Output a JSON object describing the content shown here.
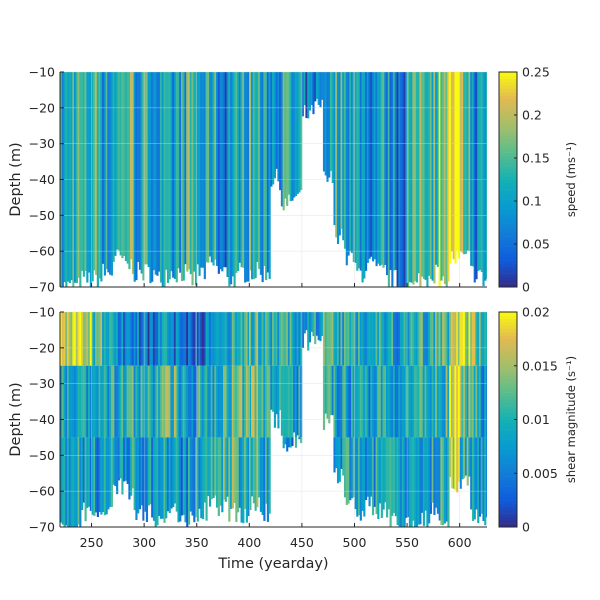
{
  "chart_data": [
    {
      "type": "heatmap",
      "name": "speed",
      "xlabel": "",
      "ylabel": "Depth (m)",
      "colorbar_label": "speed (ms⁻¹)",
      "xlim": [
        220,
        626
      ],
      "ylim": [
        -70,
        -10
      ],
      "clim": [
        0,
        0.25
      ],
      "grid": true,
      "colormap": "parula",
      "yticks": [
        "-10",
        "-20",
        "-30",
        "-40",
        "-50",
        "-60",
        "-70"
      ],
      "ytick_values": [
        -10,
        -20,
        -30,
        -40,
        -50,
        -60,
        -70
      ],
      "cbticks": [
        "0",
        "0.05",
        "0.1",
        "0.15",
        "0.2",
        "0.25"
      ],
      "cbtick_values": [
        0,
        0.05,
        0.1,
        0.15,
        0.2,
        0.25
      ],
      "time_bin_start": [
        220,
        230,
        240,
        250,
        260,
        270,
        280,
        290,
        300,
        310,
        320,
        330,
        340,
        350,
        360,
        370,
        380,
        390,
        400,
        410,
        420,
        430,
        440,
        450,
        460,
        470,
        480,
        490,
        500,
        510,
        520,
        530,
        540,
        550,
        560,
        570,
        580,
        590,
        600,
        610,
        620
      ],
      "bin_width_days": 10,
      "layers": [
        [
          -10,
          -70
        ]
      ],
      "values": [
        [
          0.1
        ],
        [
          0.14
        ],
        [
          0.12
        ],
        [
          0.15
        ],
        [
          0.1
        ],
        [
          0.13
        ],
        [
          0.16
        ],
        [
          0.1
        ],
        [
          0.12
        ],
        [
          0.09
        ],
        [
          0.08
        ],
        [
          0.11
        ],
        [
          0.14
        ],
        [
          0.09
        ],
        [
          0.12
        ],
        [
          0.07
        ],
        [
          0.1
        ],
        [
          0.12
        ],
        [
          0.13
        ],
        [
          0.09
        ],
        [
          0.1
        ],
        [
          0.12
        ],
        [
          0.08
        ],
        [
          0.06
        ],
        [
          0.07
        ],
        [
          0.1
        ],
        [
          0.13
        ],
        [
          0.12
        ],
        [
          0.1
        ],
        [
          0.08
        ],
        [
          0.11
        ],
        [
          0.09
        ],
        [
          0.07
        ],
        [
          0.12
        ],
        [
          0.17
        ],
        [
          0.15
        ],
        [
          0.2
        ],
        [
          0.24
        ],
        [
          0.16
        ],
        [
          0.08
        ],
        [
          0.1
        ]
      ],
      "deepest_valid_depth": [
        -70,
        -70,
        -68,
        -68,
        -66,
        -62,
        -64,
        -66,
        -66,
        -68,
        -66,
        -66,
        -68,
        -66,
        -64,
        -66,
        -68,
        -66,
        -66,
        -66,
        -40,
        -47,
        -45,
        -22,
        -20,
        -40,
        -55,
        -62,
        -66,
        -64,
        -66,
        -68,
        -70,
        -70,
        -68,
        -66,
        -70,
        -62,
        -62,
        -66,
        -68
      ]
    },
    {
      "type": "heatmap",
      "name": "shear",
      "xlabel": "Time (yearday)",
      "ylabel": "Depth (m)",
      "colorbar_label": "shear magnitude (s⁻¹)",
      "xlim": [
        220,
        626
      ],
      "ylim": [
        -70,
        -10
      ],
      "clim": [
        0,
        0.02
      ],
      "grid": true,
      "colormap": "parula",
      "xticks": [
        "250",
        "300",
        "350",
        "400",
        "450",
        "500",
        "550",
        "600"
      ],
      "xtick_values": [
        250,
        300,
        350,
        400,
        450,
        500,
        550,
        600
      ],
      "yticks": [
        "-10",
        "-20",
        "-30",
        "-40",
        "-50",
        "-60",
        "-70"
      ],
      "ytick_values": [
        -10,
        -20,
        -30,
        -40,
        -50,
        -60,
        -70
      ],
      "cbticks": [
        "0",
        "0.005",
        "0.01",
        "0.015",
        "0.02"
      ],
      "cbtick_values": [
        0,
        0.005,
        0.01,
        0.015,
        0.02
      ],
      "time_bin_start": [
        220,
        230,
        240,
        250,
        260,
        270,
        280,
        290,
        300,
        310,
        320,
        330,
        340,
        350,
        360,
        370,
        380,
        390,
        400,
        410,
        420,
        430,
        440,
        450,
        460,
        470,
        480,
        490,
        500,
        510,
        520,
        530,
        540,
        550,
        560,
        570,
        580,
        590,
        600,
        610,
        620
      ],
      "bin_width_days": 10,
      "layers": [
        [
          -10,
          -25
        ],
        [
          -25,
          -45
        ],
        [
          -45,
          -70
        ]
      ],
      "values": [
        [
          0.017,
          0.008,
          0.009
        ],
        [
          0.018,
          0.008,
          0.01
        ],
        [
          0.016,
          0.007,
          0.008
        ],
        [
          0.012,
          0.007,
          0.007
        ],
        [
          0.01,
          0.009,
          0.008
        ],
        [
          0.006,
          0.009,
          0.008
        ],
        [
          0.006,
          0.01,
          0.008
        ],
        [
          0.005,
          0.009,
          0.007
        ],
        [
          0.005,
          0.009,
          0.008
        ],
        [
          0.006,
          0.011,
          0.008
        ],
        [
          0.006,
          0.012,
          0.007
        ],
        [
          0.005,
          0.009,
          0.007
        ],
        [
          0.004,
          0.008,
          0.007
        ],
        [
          0.005,
          0.01,
          0.009
        ],
        [
          0.006,
          0.01,
          0.01
        ],
        [
          0.008,
          0.011,
          0.012
        ],
        [
          0.009,
          0.012,
          0.013
        ],
        [
          0.011,
          0.012,
          0.01
        ],
        [
          0.012,
          0.013,
          0.011
        ],
        [
          0.011,
          0.01,
          0.009
        ],
        [
          0.01,
          0.009,
          0.008
        ],
        [
          0.01,
          0.008,
          0.007
        ],
        [
          0.008,
          0.008,
          0.007
        ],
        [
          0.007,
          0.006,
          0.006
        ],
        [
          0.009,
          0.008,
          0.007
        ],
        [
          0.011,
          0.009,
          0.008
        ],
        [
          0.01,
          0.008,
          0.008
        ],
        [
          0.009,
          0.008,
          0.008
        ],
        [
          0.01,
          0.009,
          0.008
        ],
        [
          0.009,
          0.008,
          0.007
        ],
        [
          0.01,
          0.009,
          0.008
        ],
        [
          0.009,
          0.008,
          0.008
        ],
        [
          0.008,
          0.008,
          0.007
        ],
        [
          0.009,
          0.008,
          0.007
        ],
        [
          0.01,
          0.009,
          0.008
        ],
        [
          0.01,
          0.009,
          0.009
        ],
        [
          0.012,
          0.011,
          0.01
        ],
        [
          0.018,
          0.017,
          0.016
        ],
        [
          0.016,
          0.012,
          0.01
        ],
        [
          0.013,
          0.009,
          0.008
        ],
        [
          0.012,
          0.008,
          0.008
        ]
      ],
      "deepest_valid_depth": [
        -70,
        -70,
        -66,
        -68,
        -64,
        -58,
        -60,
        -66,
        -66,
        -68,
        -66,
        -66,
        -68,
        -66,
        -64,
        -64,
        -66,
        -66,
        -64,
        -66,
        -40,
        -47,
        -45,
        -18,
        -18,
        -40,
        -55,
        -62,
        -66,
        -64,
        -66,
        -68,
        -70,
        -70,
        -68,
        -66,
        -70,
        -58,
        -58,
        -66,
        -68
      ]
    }
  ]
}
